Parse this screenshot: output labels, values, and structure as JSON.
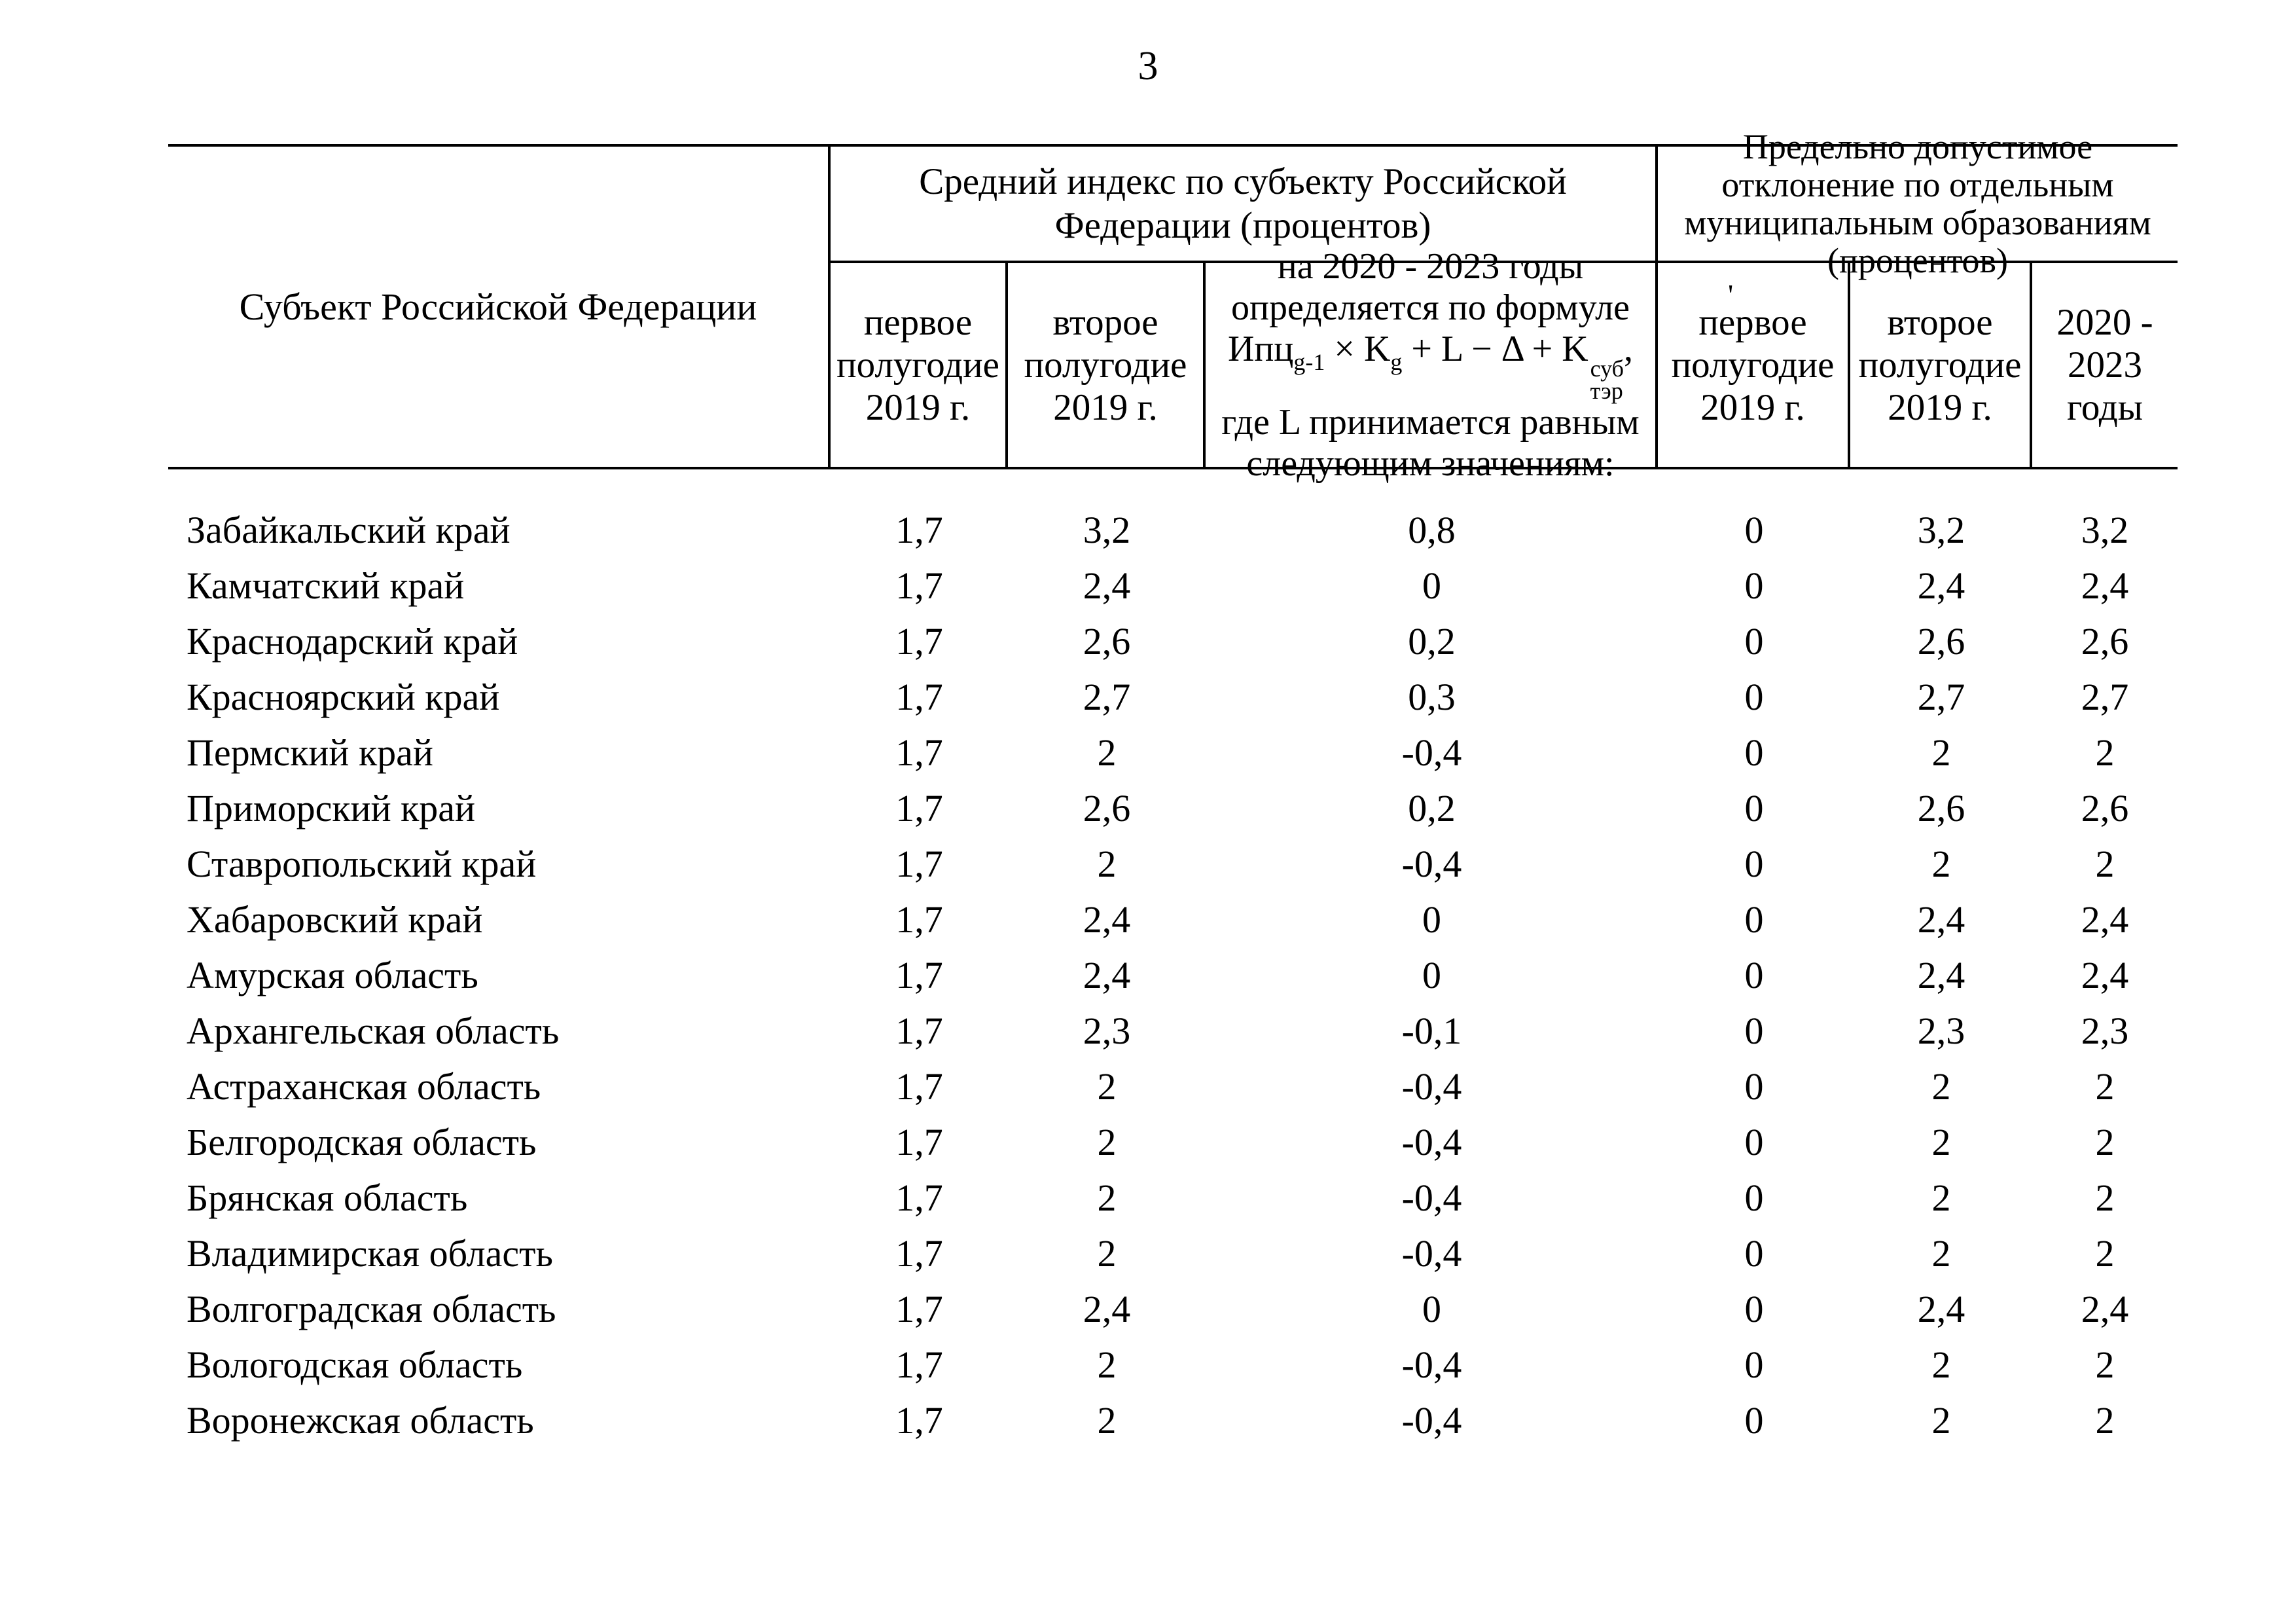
{
  "page_number": "3",
  "artifact_mark": "'",
  "table": {
    "col1_header": "Субъект Российской Федерации",
    "group1_title": "Средний индекс по субъекту Российской Федерации (процентов)",
    "group2_title": "Предельно допустимое отклонение по отдельным муниципальным образованиям (процентов)",
    "col2_header": "первое полугодие 2019 г.",
    "col3_header": "второе полугодие 2019 г.",
    "col4_header": {
      "line1": "на 2020 - 2023 годы",
      "line2": "определяется по формуле",
      "formula": {
        "ipc": "Ипц",
        "ipc_sub": "g-1",
        "times_k": " × K",
        "k_sub": "g",
        "middle": " + L − Δ + K",
        "k2_sup": "суб",
        "k2_sub": "тэр",
        "comma": ","
      },
      "line4": "где L принимается равным",
      "line5": "следующим значениям:"
    },
    "col5_header": "первое полугодие 2019 г.",
    "col6_header": "второе полугодие 2019 г.",
    "col7_header": "2020 - 2023 годы",
    "rows": [
      {
        "name": "Забайкальский край",
        "values": [
          "1,7",
          "3,2",
          "0,8",
          "0",
          "3,2",
          "3,2"
        ]
      },
      {
        "name": "Камчатский край",
        "values": [
          "1,7",
          "2,4",
          "0",
          "0",
          "2,4",
          "2,4"
        ]
      },
      {
        "name": "Краснодарский край",
        "values": [
          "1,7",
          "2,6",
          "0,2",
          "0",
          "2,6",
          "2,6"
        ]
      },
      {
        "name": "Красноярский край",
        "values": [
          "1,7",
          "2,7",
          "0,3",
          "0",
          "2,7",
          "2,7"
        ]
      },
      {
        "name": "Пермский край",
        "values": [
          "1,7",
          "2",
          "-0,4",
          "0",
          "2",
          "2"
        ]
      },
      {
        "name": "Приморский край",
        "values": [
          "1,7",
          "2,6",
          "0,2",
          "0",
          "2,6",
          "2,6"
        ]
      },
      {
        "name": "Ставропольский край",
        "values": [
          "1,7",
          "2",
          "-0,4",
          "0",
          "2",
          "2"
        ]
      },
      {
        "name": "Хабаровский край",
        "values": [
          "1,7",
          "2,4",
          "0",
          "0",
          "2,4",
          "2,4"
        ]
      },
      {
        "name": "Амурская область",
        "values": [
          "1,7",
          "2,4",
          "0",
          "0",
          "2,4",
          "2,4"
        ]
      },
      {
        "name": "Архангельская область",
        "values": [
          "1,7",
          "2,3",
          "-0,1",
          "0",
          "2,3",
          "2,3"
        ]
      },
      {
        "name": "Астраханская область",
        "values": [
          "1,7",
          "2",
          "-0,4",
          "0",
          "2",
          "2"
        ]
      },
      {
        "name": "Белгородская область",
        "values": [
          "1,7",
          "2",
          "-0,4",
          "0",
          "2",
          "2"
        ]
      },
      {
        "name": "Брянская область",
        "values": [
          "1,7",
          "2",
          "-0,4",
          "0",
          "2",
          "2"
        ]
      },
      {
        "name": "Владимирская область",
        "values": [
          "1,7",
          "2",
          "-0,4",
          "0",
          "2",
          "2"
        ]
      },
      {
        "name": "Волгоградская область",
        "values": [
          "1,7",
          "2,4",
          "0",
          "0",
          "2,4",
          "2,4"
        ]
      },
      {
        "name": "Вологодская область",
        "values": [
          "1,7",
          "2",
          "-0,4",
          "0",
          "2",
          "2"
        ]
      },
      {
        "name": "Воронежская область",
        "values": [
          "1,7",
          "2",
          "-0,4",
          "0",
          "2",
          "2"
        ]
      }
    ]
  }
}
